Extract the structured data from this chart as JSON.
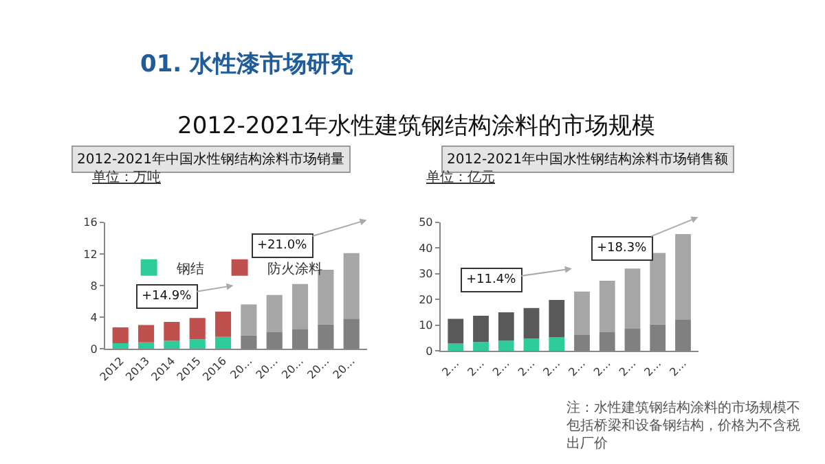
{
  "chart_data": [
    {
      "type": "bar",
      "title": "2012-2021年中国水性钢结构涂料市场销量",
      "subtitle": "单位：万吨",
      "stacked": true,
      "legend": "top left",
      "categories": [
        "2012",
        "2013",
        "2014",
        "2015",
        "2016",
        "20…",
        "20…",
        "20…",
        "20…",
        "20…"
      ],
      "series": [
        {
          "name": "钢结",
          "color": "#2ecc9a",
          "values": [
            0.7,
            0.8,
            1.0,
            1.2,
            1.5,
            null,
            null,
            null,
            null,
            null
          ]
        },
        {
          "name": "防火涂料",
          "color": "#c0504d",
          "values": [
            2.0,
            2.2,
            2.4,
            2.7,
            3.2,
            null,
            null,
            null,
            null,
            null
          ]
        },
        {
          "color": "#808080",
          "values": [
            null,
            null,
            null,
            null,
            null,
            1.7,
            2.1,
            2.5,
            3.1,
            3.8
          ]
        },
        {
          "color": "#a6a6a6",
          "values": [
            null,
            null,
            null,
            null,
            null,
            3.9,
            4.7,
            5.7,
            6.9,
            8.3
          ]
        }
      ],
      "ylim": [
        0,
        16
      ],
      "yticks": [
        0,
        4,
        8,
        12,
        16
      ],
      "annotations": [
        "01. 水性漆市场研究",
        "2012-2021年水性建筑钢结构涂料的市场规模",
        "+14.9%",
        "+21.0%"
      ]
    },
    {
      "type": "bar",
      "title": "2012-2021年中国水性钢结构涂料市场销售额",
      "subtitle": "单位：亿元",
      "stacked": true,
      "categories": [
        "2…",
        "2…",
        "2…",
        "2…",
        "2…",
        "2…",
        "2…",
        "2…",
        "2…",
        "2…"
      ],
      "series": [
        {
          "color": "#2ecc9a",
          "values": [
            2.9,
            3.5,
            4.0,
            4.8,
            5.3,
            null,
            null,
            null,
            null,
            null
          ]
        },
        {
          "color": "#595959",
          "values": [
            9.6,
            10.2,
            11.0,
            11.9,
            14.5,
            null,
            null,
            null,
            null,
            null
          ]
        },
        {
          "color": "#808080",
          "values": [
            null,
            null,
            null,
            null,
            null,
            6.2,
            7.3,
            8.8,
            10.3,
            12.3
          ]
        },
        {
          "color": "#a6a6a6",
          "values": [
            null,
            null,
            null,
            null,
            null,
            16.9,
            20.0,
            23.2,
            27.8,
            33.1
          ]
        }
      ],
      "ylim": [
        0,
        50
      ],
      "yticks": [
        0,
        10,
        20,
        30,
        40,
        50
      ],
      "annotations": [
        "+11.4%",
        "+18.3%",
        "注：水性建筑钢结构涂料的市场规模不包括桥梁和设备钢结构，价格为不含税出厂价"
      ]
    }
  ]
}
